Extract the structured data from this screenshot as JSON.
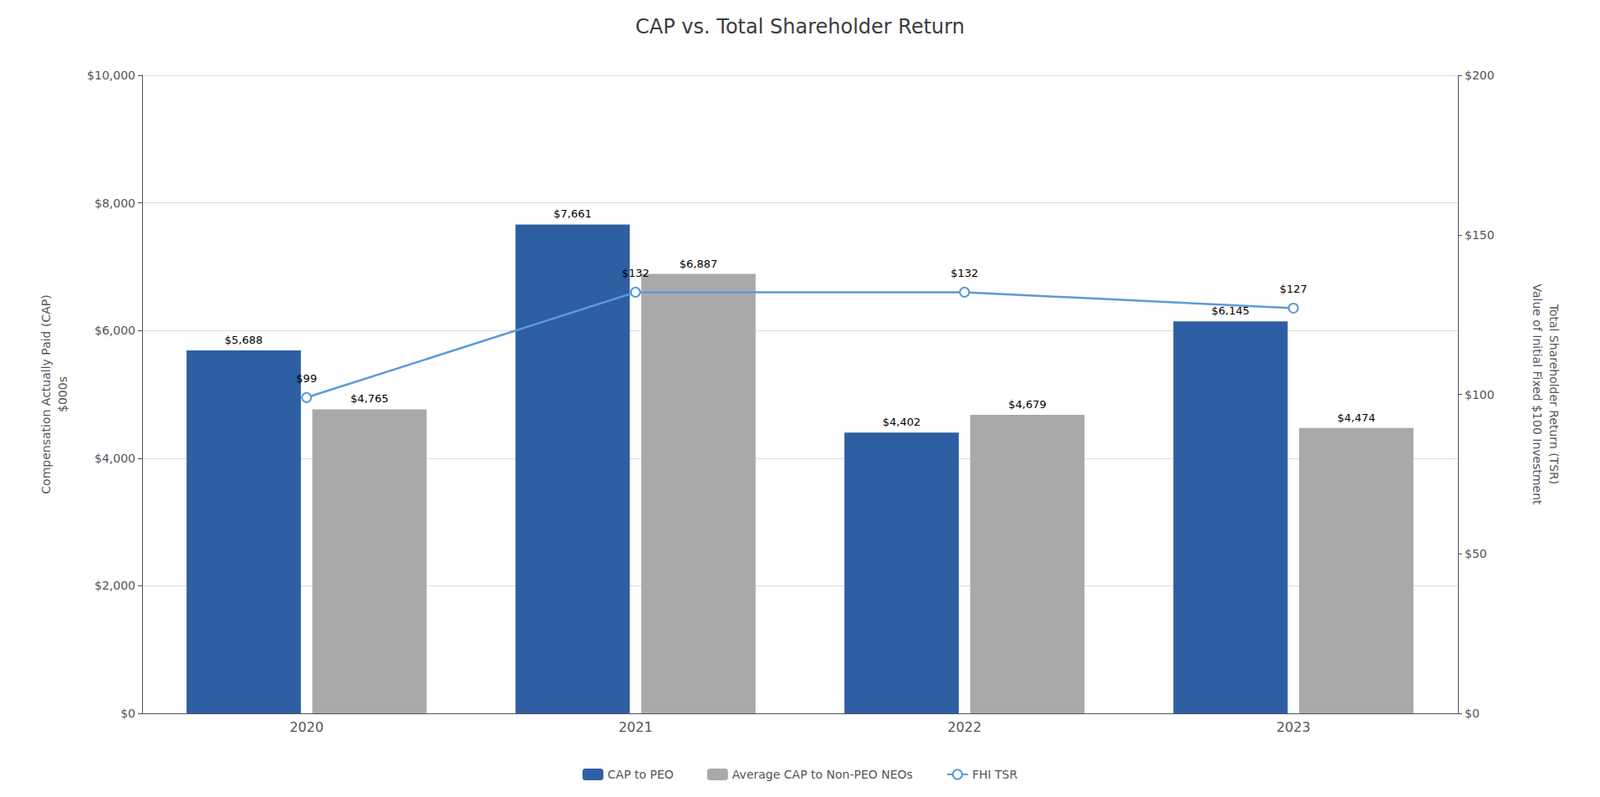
{
  "chart_data": {
    "type": "bar",
    "title": "CAP vs. Total Shareholder Return",
    "categories": [
      "2020",
      "2021",
      "2022",
      "2023"
    ],
    "series": [
      {
        "name": "CAP to PEO",
        "type": "bar",
        "color": "#2E5FA3",
        "values": [
          5688,
          7661,
          4402,
          6145
        ],
        "value_labels": [
          "$5,688",
          "$7,661",
          "$4,402",
          "$6,145"
        ]
      },
      {
        "name": "Average CAP to Non-PEO NEOs",
        "type": "bar",
        "color": "#A9A9A9",
        "values": [
          4765,
          6887,
          4679,
          4474
        ],
        "value_labels": [
          "$4,765",
          "$6,887",
          "$4,679",
          "$4,474"
        ]
      },
      {
        "name": "FHI TSR",
        "type": "line",
        "color": "#5B9BD5",
        "marker": "circle",
        "axis": "y2",
        "values": [
          99,
          132,
          132,
          127
        ],
        "value_labels": [
          "$99",
          "$132",
          "$132",
          "$127"
        ]
      }
    ],
    "ylabel": "Compensation Actually Paid (CAP)\n$000s",
    "y2label": "Total Shareholder Return (TSR)\nValue of Initial Fixed $100 Investment",
    "ylim": [
      0,
      10000
    ],
    "yticks": [
      {
        "value": 0,
        "label": "$0"
      },
      {
        "value": 2000,
        "label": "$2,000"
      },
      {
        "value": 4000,
        "label": "$4,000"
      },
      {
        "value": 6000,
        "label": "$6,000"
      },
      {
        "value": 8000,
        "label": "$8,000"
      },
      {
        "value": 10000,
        "label": "$10,000"
      }
    ],
    "y2lim": [
      0,
      200
    ],
    "y2ticks": [
      {
        "value": 0,
        "label": "$0"
      },
      {
        "value": 50,
        "label": "$50"
      },
      {
        "value": 100,
        "label": "$100"
      },
      {
        "value": 150,
        "label": "$150"
      },
      {
        "value": 200,
        "label": "$200"
      }
    ],
    "grid": true,
    "legend": "bottom",
    "data_labels": true
  }
}
